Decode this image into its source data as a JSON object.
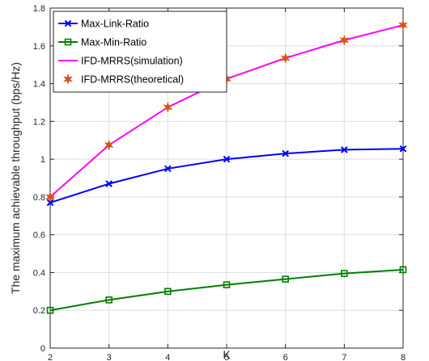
{
  "chart_data": {
    "type": "line",
    "xlabel": "K",
    "ylabel": "The maximum achievable throughput (bps/Hz)",
    "xlim": [
      2,
      8
    ],
    "ylim": [
      0,
      1.8
    ],
    "x_ticks": [
      "2",
      "3",
      "4",
      "5",
      "6",
      "7",
      "8"
    ],
    "y_ticks": [
      "0",
      "0.2",
      "0.4",
      "0.6",
      "0.8",
      "1",
      "1.2",
      "1.4",
      "1.6",
      "1.8"
    ],
    "grid": true,
    "legend_position": "top-left",
    "x": [
      2,
      3,
      4,
      5,
      6,
      7,
      8
    ],
    "series": [
      {
        "name": "Max-Link-Ratio",
        "color": "#0000ff",
        "marker": "x",
        "line": true,
        "values": [
          0.77,
          0.87,
          0.95,
          1.0,
          1.03,
          1.05,
          1.055
        ]
      },
      {
        "name": "Max-Min-Ratio",
        "color": "#007f00",
        "marker": "square",
        "line": true,
        "values": [
          0.2,
          0.255,
          0.3,
          0.335,
          0.365,
          0.395,
          0.415
        ]
      },
      {
        "name": "IFD-MRRS(simulation)",
        "color": "#ff00ff",
        "marker": "none",
        "line": true,
        "values": [
          0.8,
          1.075,
          1.275,
          1.425,
          1.535,
          1.63,
          1.71
        ]
      },
      {
        "name": "IFD-MRRS(theoretical)",
        "color": "#d95319",
        "marker": "star",
        "line": false,
        "values": [
          0.8,
          1.075,
          1.275,
          1.425,
          1.535,
          1.63,
          1.71
        ]
      }
    ]
  }
}
